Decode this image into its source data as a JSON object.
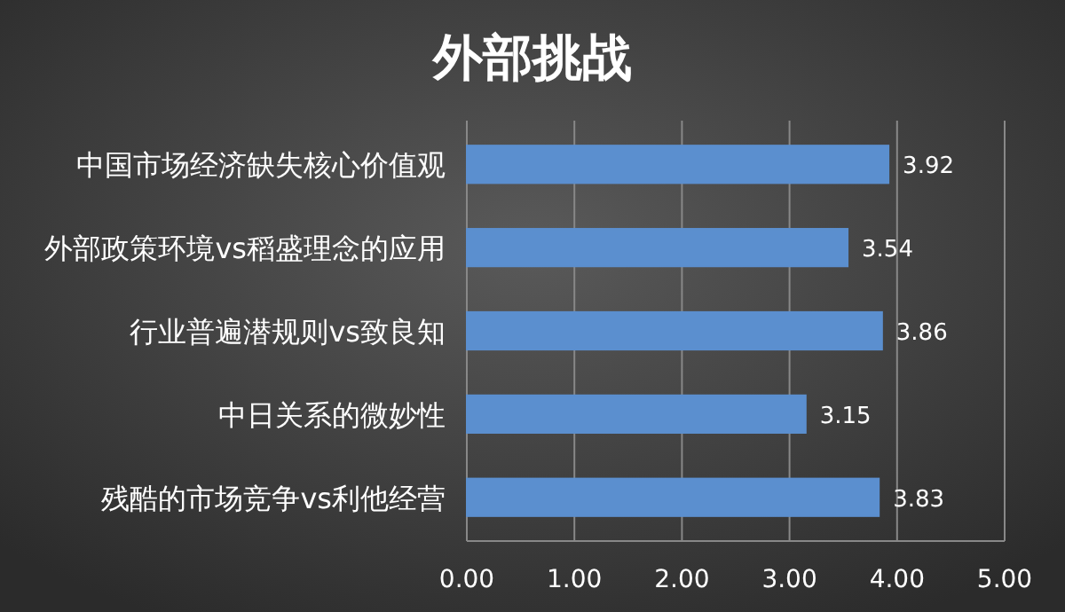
{
  "chart_data": {
    "type": "bar",
    "orientation": "horizontal",
    "title": "外部挑战",
    "categories": [
      "中国市场经济缺失核心价值观",
      "外部政策环境vs稻盛理念的应用",
      "行业普遍潜规则vs致良知",
      "中日关系的微妙性",
      "残酷的市场竞争vs利他经营"
    ],
    "values": [
      3.92,
      3.54,
      3.86,
      3.15,
      3.83
    ],
    "color": "#5b8fcf",
    "data_labels": true,
    "grid": "x",
    "xlim": [
      0,
      5
    ],
    "xticks": [
      {
        "value": 0,
        "label": "0.00"
      },
      {
        "value": 1,
        "label": "1.00"
      },
      {
        "value": 2,
        "label": "2.00"
      },
      {
        "value": 3,
        "label": "3.00"
      },
      {
        "value": 4,
        "label": "4.00"
      },
      {
        "value": 5,
        "label": "5.00"
      }
    ]
  }
}
